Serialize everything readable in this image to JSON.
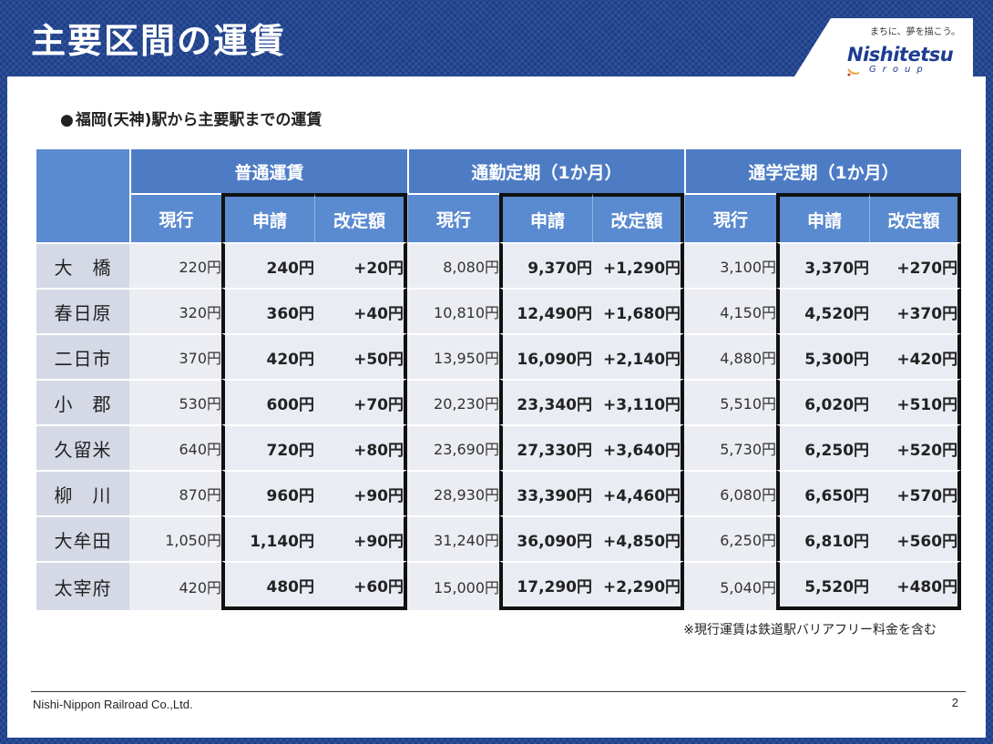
{
  "title": "主要区間の運賃",
  "logo": {
    "slogan": "まちに、夢を描こう。",
    "brand": "Nishitetsu",
    "sub": "Group"
  },
  "subtitle": {
    "bullet": "●",
    "text": "福岡(天神)駅から主要駅までの運賃"
  },
  "table": {
    "groups": [
      "普通運賃",
      "通勤定期（1か月）",
      "通学定期（1か月）"
    ],
    "columns": [
      "現行",
      "申請",
      "改定額"
    ],
    "rows": [
      {
        "name": "大　橋",
        "regular": [
          "220円",
          "240円",
          "+20円"
        ],
        "commuter": [
          "8,080円",
          "9,370円",
          "+1,290円"
        ],
        "student": [
          "3,100円",
          "3,370円",
          "+270円"
        ]
      },
      {
        "name": "春日原",
        "regular": [
          "320円",
          "360円",
          "+40円"
        ],
        "commuter": [
          "10,810円",
          "12,490円",
          "+1,680円"
        ],
        "student": [
          "4,150円",
          "4,520円",
          "+370円"
        ]
      },
      {
        "name": "二日市",
        "regular": [
          "370円",
          "420円",
          "+50円"
        ],
        "commuter": [
          "13,950円",
          "16,090円",
          "+2,140円"
        ],
        "student": [
          "4,880円",
          "5,300円",
          "+420円"
        ]
      },
      {
        "name": "小　郡",
        "regular": [
          "530円",
          "600円",
          "+70円"
        ],
        "commuter": [
          "20,230円",
          "23,340円",
          "+3,110円"
        ],
        "student": [
          "5,510円",
          "6,020円",
          "+510円"
        ]
      },
      {
        "name": "久留米",
        "regular": [
          "640円",
          "720円",
          "+80円"
        ],
        "commuter": [
          "23,690円",
          "27,330円",
          "+3,640円"
        ],
        "student": [
          "5,730円",
          "6,250円",
          "+520円"
        ]
      },
      {
        "name": "柳　川",
        "regular": [
          "870円",
          "960円",
          "+90円"
        ],
        "commuter": [
          "28,930円",
          "33,390円",
          "+4,460円"
        ],
        "student": [
          "6,080円",
          "6,650円",
          "+570円"
        ]
      },
      {
        "name": "大牟田",
        "regular": [
          "1,050円",
          "1,140円",
          "+90円"
        ],
        "commuter": [
          "31,240円",
          "36,090円",
          "+4,850円"
        ],
        "student": [
          "6,250円",
          "6,810円",
          "+560円"
        ]
      },
      {
        "name": "太宰府",
        "regular": [
          "420円",
          "480円",
          "+60円"
        ],
        "commuter": [
          "15,000円",
          "17,290円",
          "+2,290円"
        ],
        "student": [
          "5,040円",
          "5,520円",
          "+480円"
        ]
      }
    ]
  },
  "note": "※現行運賃は鉄道駅バリアフリー料金を含む",
  "footer": {
    "company": "Nishi-Nippon Railroad Co.,Ltd.",
    "page": "2"
  },
  "colors": {
    "frame": "#1c3f8a",
    "header": "#4d7cc4",
    "subheader": "#5a8ad0",
    "name_cell": "#d4d9e5",
    "value_cell": "#e9ecf3",
    "outline": "#111111"
  }
}
